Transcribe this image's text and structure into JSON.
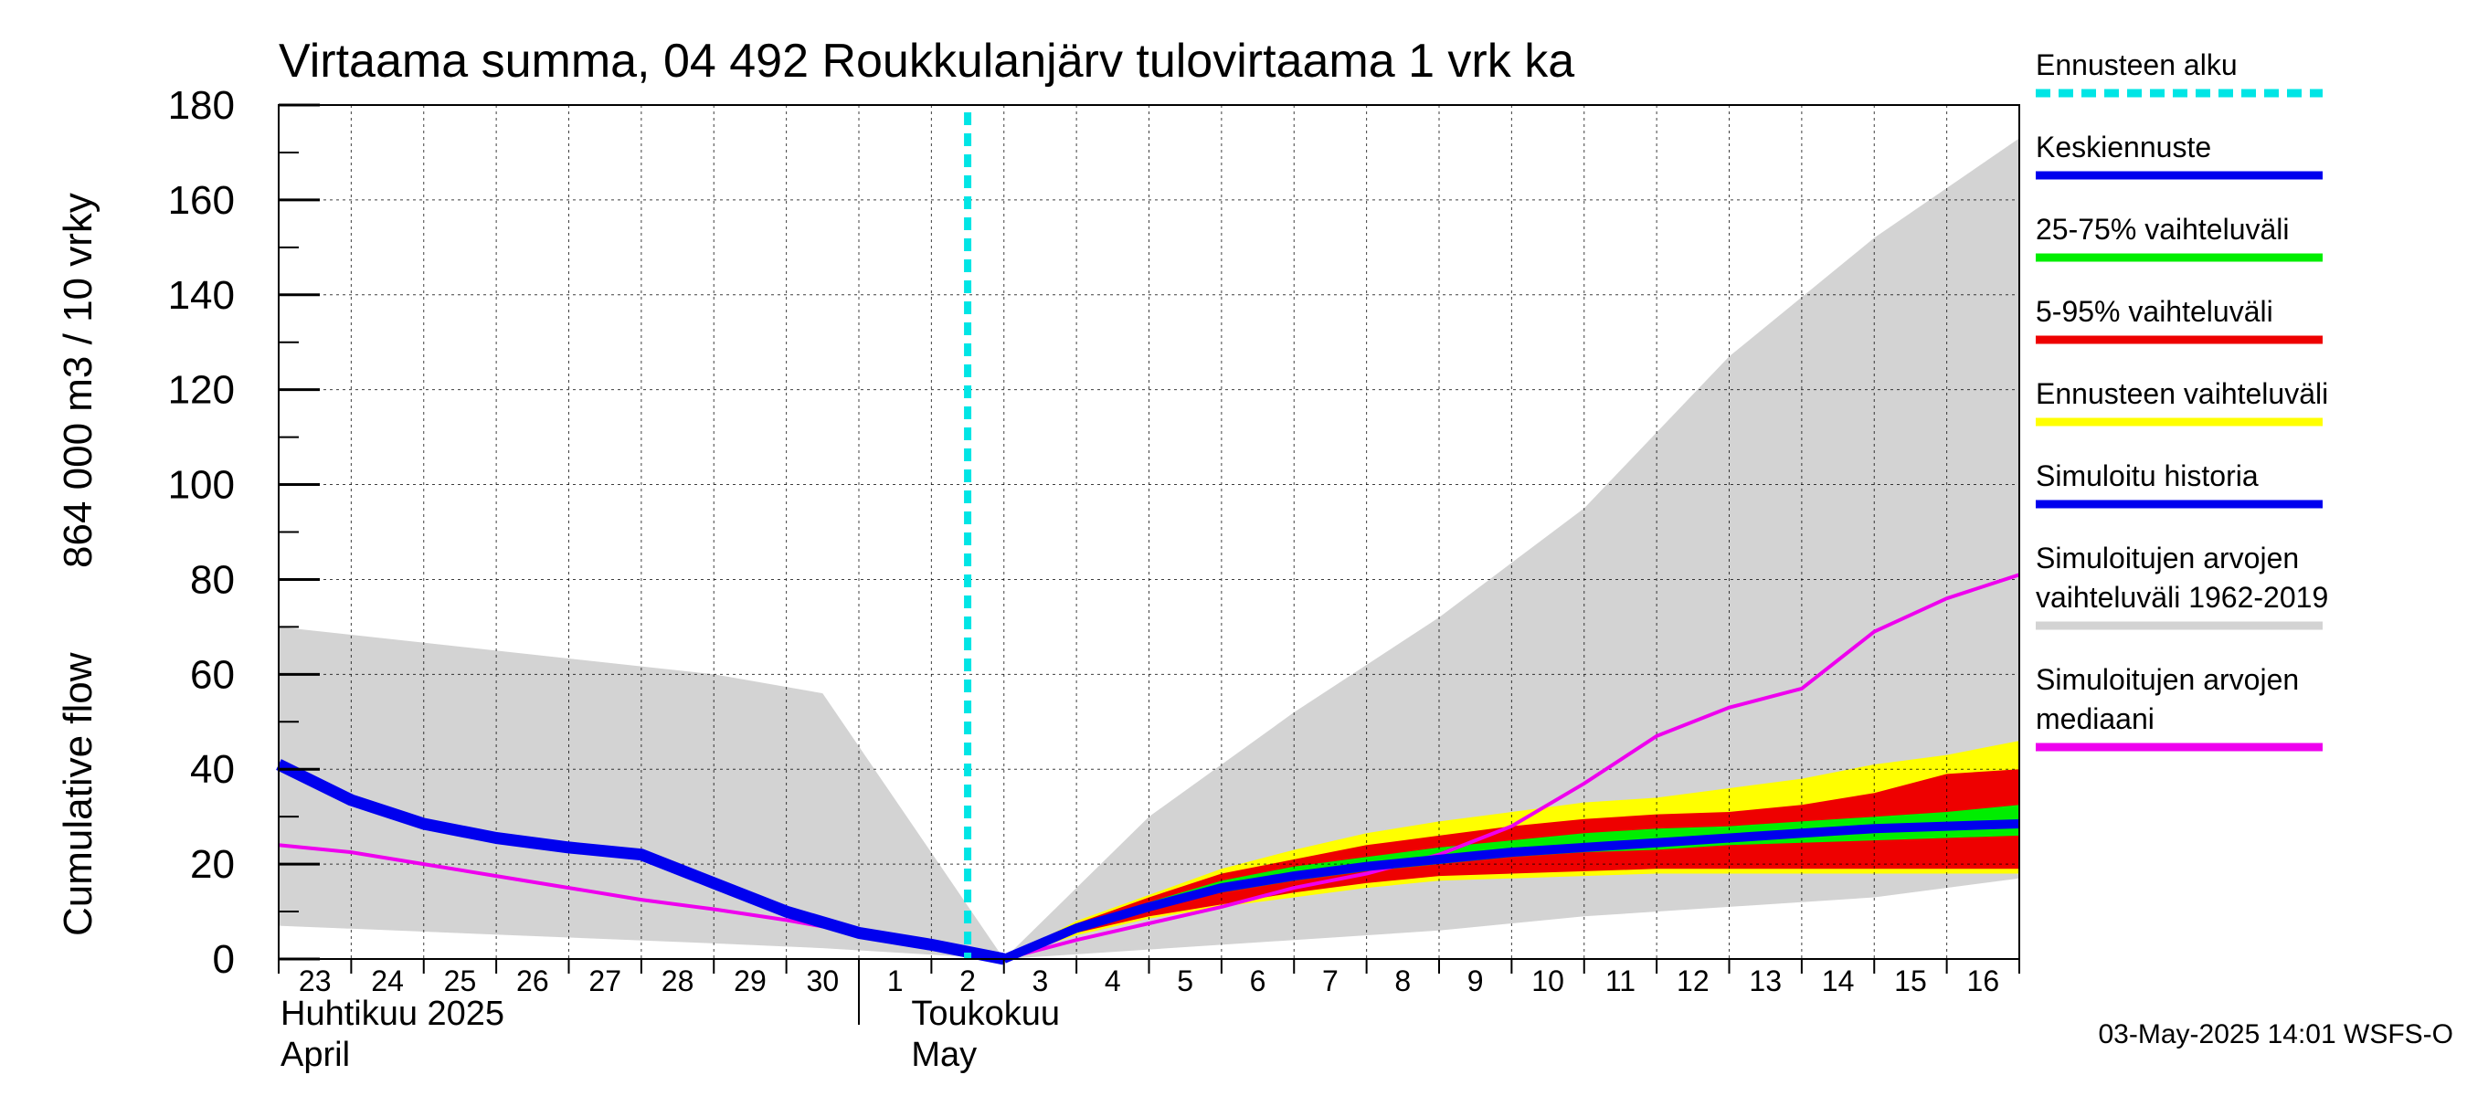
{
  "chart_data": {
    "type": "area",
    "title": "Virtaama summa, 04 492 Roukkulanjärv tulovirtaama 1 vrk ka",
    "ylabel_top": "864 000 m3 / 10 vrky",
    "ylabel_bottom": "Cumulative flow",
    "ylim": [
      0,
      180
    ],
    "yticks": [
      "0",
      "20",
      "40",
      "60",
      "80",
      "100",
      "120",
      "140",
      "160",
      "180"
    ],
    "x_domain": [
      "2025-04-23",
      "2025-05-17"
    ],
    "day_ticks": [
      "23",
      "24",
      "25",
      "26",
      "27",
      "28",
      "29",
      "30",
      "1",
      "2",
      "3",
      "4",
      "5",
      "6",
      "7",
      "8",
      "9",
      "10",
      "11",
      "12",
      "13",
      "14",
      "15",
      "16"
    ],
    "month_labels": [
      {
        "fi": "Huhtikuu  2025",
        "en": "April",
        "start_day": 0
      },
      {
        "fi": "Toukokuu",
        "en": "May",
        "start_day": 8
      }
    ],
    "forecast_start_day": 9.5,
    "historical_range": {
      "days": [
        0,
        6,
        7.5,
        10,
        12,
        14,
        16,
        18,
        20,
        22,
        24
      ],
      "lower": [
        7,
        3.3,
        2.3,
        0,
        2,
        4,
        6,
        9,
        11,
        13,
        17
      ],
      "upper": [
        70,
        60,
        56,
        0,
        30,
        52,
        72,
        95,
        127,
        152,
        173
      ]
    },
    "historical_median": {
      "days": [
        0,
        1,
        2,
        3,
        4,
        5,
        6,
        7,
        8,
        9,
        10,
        11,
        12,
        13,
        14,
        15,
        16,
        17,
        18,
        19,
        20,
        21,
        22,
        23,
        24
      ],
      "values": [
        24,
        22.5,
        20,
        17.5,
        15,
        12.5,
        10.5,
        8.2,
        5.5,
        3,
        0,
        4,
        7.5,
        11,
        15,
        18,
        22,
        28,
        37,
        47,
        53,
        57,
        69,
        76,
        81
      ]
    },
    "simulated_history": {
      "days": [
        0,
        1,
        2,
        3,
        4,
        5,
        6,
        7,
        8,
        9,
        10
      ],
      "values": [
        41,
        33.5,
        28.5,
        25.5,
        23.5,
        22,
        16,
        10,
        5.5,
        3,
        0
      ]
    },
    "forecast_days": [
      10,
      11,
      12,
      13,
      14,
      15,
      16,
      17,
      18,
      19,
      20,
      21,
      22,
      23,
      24
    ],
    "forecast_range": {
      "lower": [
        0,
        5,
        8.5,
        11,
        13,
        15,
        16.5,
        17,
        17.5,
        18,
        18,
        18,
        18,
        18,
        18
      ],
      "upper": [
        0,
        8,
        13.5,
        19,
        23,
        26.5,
        29,
        31,
        33,
        34,
        36,
        38,
        41,
        43,
        46
      ]
    },
    "p5_95": {
      "lower": [
        0,
        5.5,
        9,
        11.5,
        14,
        16,
        17.5,
        18,
        18.5,
        19,
        19,
        19,
        19,
        19,
        19
      ],
      "upper": [
        0,
        7.5,
        13,
        18,
        21,
        24,
        26,
        28,
        29.5,
        30.5,
        31,
        32.5,
        35,
        39,
        40
      ]
    },
    "p25_75": {
      "lower": [
        0,
        6,
        10.5,
        14,
        16.5,
        18.5,
        20,
        21.5,
        22.5,
        23,
        24,
        24.5,
        25,
        25.5,
        26
      ]
    },
    "p25_75_upper": [
      0,
      7,
      12,
      16.5,
      19.5,
      21.5,
      23.5,
      25,
      26.5,
      27.5,
      28,
      29,
      30,
      31,
      32.5
    ],
    "mean_forecast": [
      0,
      6.5,
      11,
      15,
      17.5,
      19.5,
      21,
      22.5,
      23.5,
      24.5,
      25.5,
      26.5,
      27.5,
      28,
      28.5
    ],
    "legend": [
      {
        "label": "Ennusteen alku",
        "label2": "",
        "color": "#00e5e5",
        "style": "dashed"
      },
      {
        "label": "Keskiennuste",
        "label2": "",
        "color": "#0000ee",
        "style": "solid"
      },
      {
        "label": "25-75% vaihteluväli",
        "label2": "",
        "color": "#00ee00",
        "style": "solid"
      },
      {
        "label": "5-95% vaihteluväli",
        "label2": "",
        "color": "#ee0000",
        "style": "solid"
      },
      {
        "label": "Ennusteen vaihteluväli",
        "label2": "",
        "color": "#ffff00",
        "style": "solid"
      },
      {
        "label": "Simuloitu historia",
        "label2": "",
        "color": "#0000ee",
        "style": "solid"
      },
      {
        "label": "Simuloitujen arvojen",
        "label2": "vaihteluväli 1962-2019",
        "color": "#d3d3d3",
        "style": "solid"
      },
      {
        "label": "Simuloitujen arvojen",
        "label2": "mediaani",
        "color": "#ee00ee",
        "style": "solid"
      }
    ],
    "colors": {
      "hist_range": "#d3d3d3",
      "median": "#ee00ee",
      "sim_history": "#0000ee",
      "forecast_range": "#ffff00",
      "p5_95": "#ee0000",
      "p25_75": "#00ee00",
      "mean": "#0000ee",
      "forecast_start": "#00e5e5",
      "grid": "#000000"
    }
  },
  "footer": "03-May-2025 14:01 WSFS-O"
}
